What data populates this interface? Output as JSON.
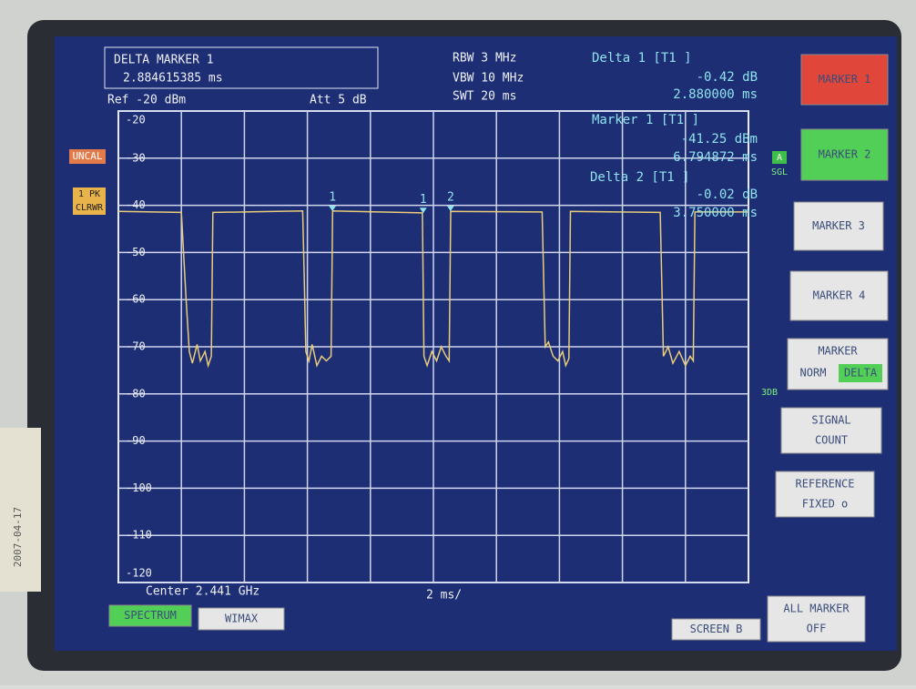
{
  "header": {
    "title": "DELTA MARKER 1",
    "value": "2.884615385 ms",
    "ref": "Ref -20 dBm",
    "att": "Att 5 dB",
    "rbw": "RBW 3 MHz",
    "vbw": "VBW 10 MHz",
    "swt": "SWT 20 ms"
  },
  "readouts": [
    {
      "name": "Delta 1 [T1 ]",
      "level": "-0.42 dB",
      "time": "2.880000 ms"
    },
    {
      "name": "Marker 1 [T1 ]",
      "level": "-41.25 dBm",
      "time": "6.794872 ms"
    },
    {
      "name": "Delta 2 [T1 ]",
      "level": "-0.02 dB",
      "time": "3.750000 ms"
    }
  ],
  "side_labels": {
    "uncal": "UNCAL",
    "pk": "1 PK",
    "clrwr": "CLRWR",
    "a": "A",
    "sgl": "SGL",
    "db3": "3DB",
    "date": "2007-04-17"
  },
  "footer": {
    "center": "Center 2.441 GHz",
    "span": "2 ms/"
  },
  "softkeys": [
    {
      "lines": [
        "MARKER 1"
      ]
    },
    {
      "lines": [
        "MARKER 2"
      ]
    },
    {
      "lines": [
        "MARKER 3"
      ]
    },
    {
      "lines": [
        "MARKER 4"
      ]
    },
    {
      "lines": [
        "MARKER",
        "NORM",
        "DELTA"
      ]
    },
    {
      "lines": [
        "SIGNAL",
        "COUNT"
      ]
    },
    {
      "lines": [
        "REFERENCE",
        "FIXED  o"
      ]
    },
    {
      "lines": [
        "ALL MARKER",
        "OFF"
      ]
    }
  ],
  "bottom_keys": [
    "SPECTRUM",
    "WIMAX",
    "SCREEN B"
  ],
  "chart_data": {
    "type": "line",
    "color": "#e8cc7a",
    "ylim": [
      -120,
      -20
    ],
    "xlim": [
      0,
      20
    ],
    "yticks": [
      -20,
      -30,
      -40,
      -50,
      -60,
      -70,
      -80,
      -90,
      -100,
      -110,
      -120
    ],
    "x": [
      0,
      2.0,
      2.15,
      2.25,
      2.35,
      2.5,
      2.6,
      2.75,
      2.85,
      2.95,
      3.0,
      5.85,
      5.9,
      5.95,
      6.05,
      6.15,
      6.3,
      6.45,
      6.6,
      6.75,
      6.8,
      9.65,
      9.7,
      9.8,
      9.95,
      10.1,
      10.25,
      10.4,
      10.5,
      10.55,
      13.45,
      13.55,
      13.65,
      13.8,
      13.95,
      14.1,
      14.2,
      14.3,
      14.35,
      17.2,
      17.3,
      17.45,
      17.6,
      17.8,
      18.0,
      18.15,
      18.25,
      18.3,
      20
    ],
    "values": [
      -41.3,
      -41.5,
      -60,
      -71,
      -73.5,
      -69.5,
      -73,
      -71,
      -74,
      -72,
      -41.5,
      -41.2,
      -55,
      -71,
      -73,
      -69.5,
      -74,
      -72,
      -73,
      -72,
      -41.2,
      -41.6,
      -72,
      -74,
      -71,
      -73,
      -70,
      -72,
      -73,
      -41.3,
      -41.4,
      -70,
      -69,
      -72,
      -73,
      -71,
      -74,
      -72.5,
      -41.3,
      -41.5,
      -72,
      -70,
      -73.5,
      -71,
      -74,
      -72,
      -73,
      -41.4,
      -41.4
    ],
    "markers": [
      {
        "label": "1",
        "x": 6.794872,
        "y": -41.25
      },
      {
        "label": "1",
        "x": 9.674872,
        "y": -41.67
      },
      {
        "label": "2",
        "x": 10.544872,
        "y": -41.27
      }
    ]
  }
}
